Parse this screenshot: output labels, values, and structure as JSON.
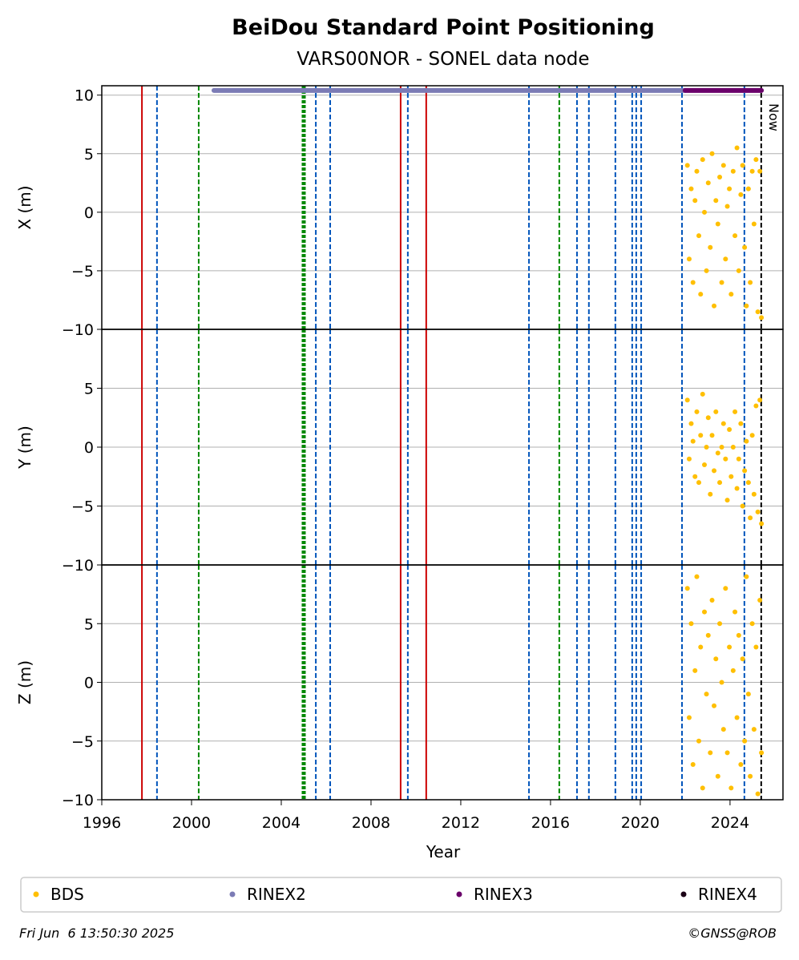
{
  "chart_data": {
    "type": "scatter",
    "title": "BeiDou Standard Point Positioning",
    "subtitle": "VARS00NOR - SONEL data node",
    "xlabel": "Year",
    "xlim": [
      1996,
      2026.36
    ],
    "xticks": [
      1996,
      2000,
      2004,
      2008,
      2012,
      2016,
      2020,
      2024
    ],
    "grid": true,
    "x": [
      2022.1,
      2022.18,
      2022.27,
      2022.35,
      2022.44,
      2022.52,
      2022.61,
      2022.69,
      2022.78,
      2022.86,
      2022.95,
      2023.03,
      2023.12,
      2023.2,
      2023.29,
      2023.37,
      2023.46,
      2023.54,
      2023.63,
      2023.71,
      2023.8,
      2023.88,
      2023.97,
      2024.05,
      2024.14,
      2024.22,
      2024.31,
      2024.39,
      2024.48,
      2024.56,
      2024.65,
      2024.73,
      2024.82,
      2024.9,
      2024.99,
      2025.07,
      2025.16,
      2025.24,
      2025.33,
      2025.4
    ],
    "panels": [
      {
        "ylabel": "X (m)",
        "ylim": [
          -10,
          10.8
        ],
        "yticks": [
          {
            "value": -10,
            "label": "−10"
          },
          {
            "value": -5,
            "label": "−5"
          },
          0,
          5,
          10
        ],
        "values": [
          4,
          -4,
          2,
          -6,
          1,
          3.5,
          -2,
          -7,
          4.5,
          0,
          -5,
          2.5,
          -3,
          5,
          -8,
          1,
          -1,
          3,
          -6,
          4,
          -4,
          0.5,
          2,
          -7,
          3.5,
          -2,
          5.5,
          -5,
          1.5,
          4,
          -3,
          -8,
          2,
          -6,
          3.5,
          -1,
          4.5,
          -8.5,
          3.5,
          -9
        ]
      },
      {
        "ylabel": "Y (m)",
        "ylim": [
          -10,
          10
        ],
        "yticks": [
          {
            "value": -10,
            "label": "−10"
          },
          {
            "value": -5,
            "label": "−5"
          },
          0,
          5
        ],
        "values": [
          4,
          -1,
          2,
          0.5,
          -2.5,
          3,
          -3,
          1,
          4.5,
          -1.5,
          0,
          2.5,
          -4,
          1,
          -2,
          3,
          -0.5,
          -3,
          0,
          2,
          -1,
          -4.5,
          1.5,
          -2.5,
          0,
          3,
          -3.5,
          -1,
          2,
          -5,
          -2,
          0.5,
          -3,
          -6,
          1,
          -4,
          3.5,
          -5.5,
          4,
          -6.5
        ]
      },
      {
        "ylabel": "Z (m)",
        "ylim": [
          -10,
          10
        ],
        "yticks": [
          {
            "value": -10,
            "label": "−10"
          },
          {
            "value": -5,
            "label": "−5"
          },
          0,
          5
        ],
        "values": [
          8,
          -3,
          5,
          -7,
          1,
          9,
          -5,
          3,
          -9,
          6,
          -1,
          4,
          -6,
          7,
          -2,
          2,
          -8,
          5,
          0,
          -4,
          8,
          -6,
          3,
          -9,
          1,
          6,
          -3,
          4,
          -7,
          2,
          -5,
          9,
          -1,
          -8,
          5,
          -4,
          3,
          -9.5,
          7,
          -6
        ]
      }
    ],
    "series": [
      {
        "name": "BDS",
        "color": "#ffbf00"
      },
      {
        "name": "RINEX2",
        "color": "#7b7bb5",
        "xrange": [
          2001.0,
          2022.0
        ],
        "level": 10.4
      },
      {
        "name": "RINEX3",
        "color": "#6a006a",
        "xrange": [
          2022.0,
          2025.4
        ],
        "level": 10.4
      },
      {
        "name": "RINEX4",
        "color": "#1a0015"
      }
    ],
    "events": [
      {
        "x": 1997.79,
        "color": "#cc0000",
        "style": "solid"
      },
      {
        "x": 1998.46,
        "color": "#0055bb",
        "style": "dashed"
      },
      {
        "x": 2000.32,
        "color": "#008800",
        "style": "dashed"
      },
      {
        "x": 2005.0,
        "color": "#008800",
        "style": "thick"
      },
      {
        "x": 2005.54,
        "color": "#0055bb",
        "style": "dashed"
      },
      {
        "x": 2006.18,
        "color": "#0055bb",
        "style": "dashed"
      },
      {
        "x": 2009.32,
        "color": "#cc0000",
        "style": "solid"
      },
      {
        "x": 2009.64,
        "color": "#0055bb",
        "style": "dashed"
      },
      {
        "x": 2010.46,
        "color": "#cc0000",
        "style": "solid"
      },
      {
        "x": 2015.04,
        "color": "#0055bb",
        "style": "dashed"
      },
      {
        "x": 2016.39,
        "color": "#008800",
        "style": "dashed"
      },
      {
        "x": 2017.18,
        "color": "#0055bb",
        "style": "dashed"
      },
      {
        "x": 2017.71,
        "color": "#0055bb",
        "style": "dashed"
      },
      {
        "x": 2018.89,
        "color": "#0055bb",
        "style": "dashed"
      },
      {
        "x": 2019.64,
        "color": "#0055bb",
        "style": "dashed"
      },
      {
        "x": 2019.82,
        "color": "#0055bb",
        "style": "dashed"
      },
      {
        "x": 2020.04,
        "color": "#0055bb",
        "style": "dashed"
      },
      {
        "x": 2021.86,
        "color": "#0055bb",
        "style": "dashed"
      },
      {
        "x": 2024.64,
        "color": "#0055bb",
        "style": "dashed"
      }
    ],
    "now": {
      "x": 2025.39,
      "label": "Now"
    },
    "footer_left": "Fri Jun  6 13:50:30 2025",
    "footer_right": "©GNSS@ROB"
  }
}
